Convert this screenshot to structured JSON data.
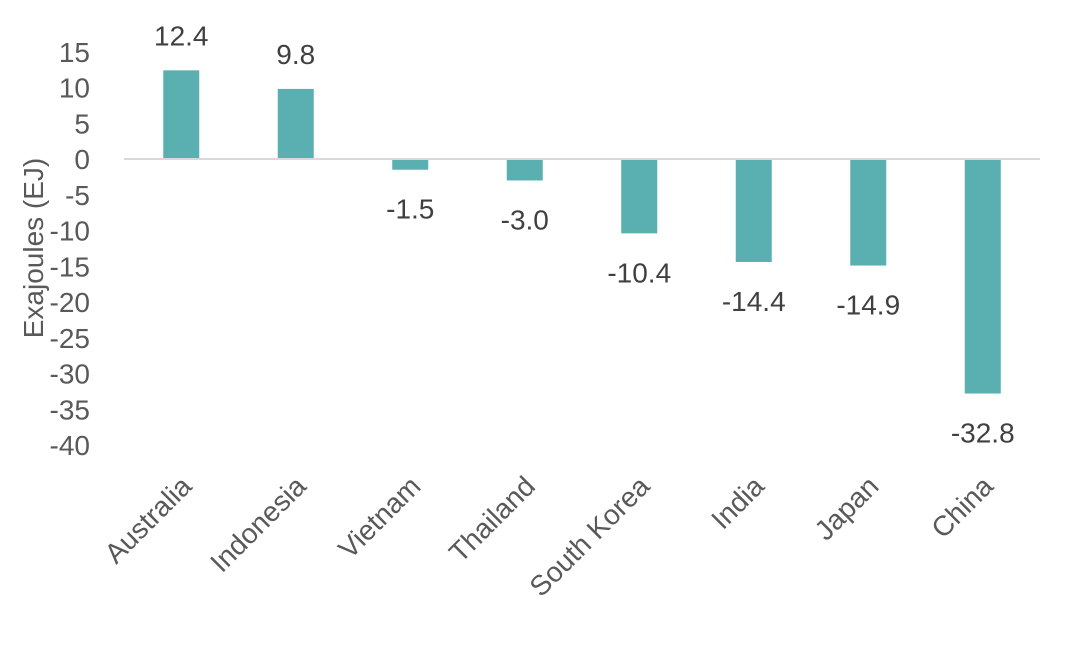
{
  "chart_data": {
    "type": "bar",
    "title": "",
    "xlabel": "",
    "ylabel": "Exajoules (EJ)",
    "categories": [
      "Australia",
      "Indonesia",
      "Vietnam",
      "Thailand",
      "South Korea",
      "India",
      "Japan",
      "China"
    ],
    "values": [
      12.4,
      9.8,
      -1.5,
      -3.0,
      -10.4,
      -14.4,
      -14.9,
      -32.8
    ],
    "data_labels": [
      "12.4",
      "9.8",
      "-1.5",
      "-3.0",
      "-10.4",
      "-14.4",
      "-14.9",
      "-32.8"
    ],
    "ylim": [
      -40,
      15
    ],
    "yticks": [
      15,
      10,
      5,
      0,
      -5,
      -10,
      -15,
      -20,
      -25,
      -30,
      -35,
      -40
    ],
    "ytick_labels": [
      "15",
      "10",
      "5",
      "0",
      "-5",
      "-10",
      "-15",
      "-20",
      "-25",
      "-30",
      "-35",
      "-40"
    ],
    "bar_color": "#5aafb0",
    "zero_line_color": "#d9d9d9",
    "grid": false,
    "legend": "none"
  }
}
